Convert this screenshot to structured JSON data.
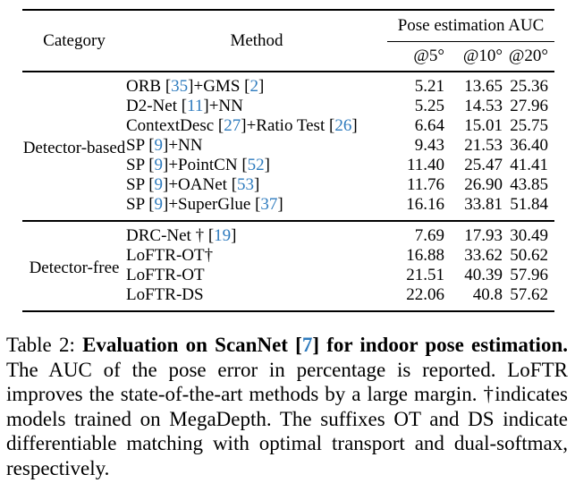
{
  "colors": {
    "citation_blue": "#2e7bbe",
    "text": "#000000",
    "background": "#ffffff"
  },
  "table": {
    "header": {
      "category": "Category",
      "method": "Method",
      "group_header": "Pose estimation AUC",
      "subheaders": [
        "@5°",
        "@10°",
        "@20°"
      ]
    },
    "groups": [
      {
        "category": "Detector-based",
        "rows": [
          {
            "method": "ORB [35]+GMS [2]",
            "bold_method": false,
            "values": [
              "5.21",
              "13.65",
              "25.36"
            ],
            "bold_values": [
              false,
              false,
              false
            ]
          },
          {
            "method": "D2-Net [11]+NN",
            "bold_method": false,
            "values": [
              "5.25",
              "14.53",
              "27.96"
            ],
            "bold_values": [
              false,
              false,
              false
            ]
          },
          {
            "method": "ContextDesc [27]+Ratio Test [26]",
            "bold_method": false,
            "values": [
              "6.64",
              "15.01",
              "25.75"
            ],
            "bold_values": [
              false,
              false,
              false
            ]
          },
          {
            "method": "SP [9]+NN",
            "bold_method": false,
            "values": [
              "9.43",
              "21.53",
              "36.40"
            ],
            "bold_values": [
              false,
              false,
              false
            ]
          },
          {
            "method": "SP [9]+PointCN [52]",
            "bold_method": false,
            "values": [
              "11.40",
              "25.47",
              "41.41"
            ],
            "bold_values": [
              false,
              false,
              false
            ]
          },
          {
            "method": "SP [9]+OANet [53]",
            "bold_method": false,
            "values": [
              "11.76",
              "26.90",
              "43.85"
            ],
            "bold_values": [
              false,
              false,
              false
            ]
          },
          {
            "method": "SP [9]+SuperGlue [37]",
            "bold_method": false,
            "values": [
              "16.16",
              "33.81",
              "51.84"
            ],
            "bold_values": [
              false,
              false,
              false
            ]
          }
        ]
      },
      {
        "category": "Detector-free",
        "rows": [
          {
            "method": "DRC-Net † [19]",
            "bold_method": false,
            "values": [
              "7.69",
              "17.93",
              "30.49"
            ],
            "bold_values": [
              false,
              false,
              false
            ]
          },
          {
            "method": "LoFTR-OT†",
            "bold_method": false,
            "values": [
              "16.88",
              "33.62",
              "50.62"
            ],
            "bold_values": [
              false,
              false,
              false
            ]
          },
          {
            "method": "LoFTR-OT",
            "bold_method": true,
            "values": [
              "21.51",
              "40.39",
              "57.96"
            ],
            "bold_values": [
              false,
              false,
              true
            ]
          },
          {
            "method": "LoFTR-DS",
            "bold_method": true,
            "values": [
              "22.06",
              "40.8",
              "57.62"
            ],
            "bold_values": [
              true,
              true,
              false
            ]
          }
        ]
      }
    ]
  },
  "caption": {
    "segments": [
      {
        "text": "Table 2: ",
        "bold": false,
        "cite": false
      },
      {
        "text": "Evaluation on ScanNet [",
        "bold": true,
        "cite": false
      },
      {
        "text": "7",
        "bold": true,
        "cite": true
      },
      {
        "text": "] for indoor pose estimation.",
        "bold": true,
        "cite": false
      },
      {
        "text": " The AUC of the pose error in percentage is reported. LoFTR improves the state-of-the-art methods by a large margin. †indicates models trained on MegaDepth. The suffixes OT and DS indicate differentiable matching with optimal transport and dual-softmax, respectively.",
        "bold": false,
        "cite": false
      }
    ]
  }
}
